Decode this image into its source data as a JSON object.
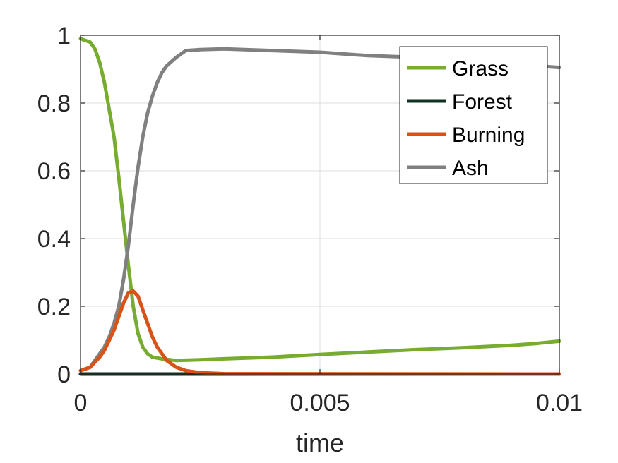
{
  "chart_data": {
    "type": "line",
    "title": "",
    "xlabel": "time",
    "ylabel": "",
    "xlim": [
      0,
      0.01
    ],
    "ylim": [
      0,
      1
    ],
    "xticks": [
      0,
      0.005,
      0.01
    ],
    "xtick_labels": [
      "0",
      "0.005",
      "0.01"
    ],
    "yticks": [
      0,
      0.2,
      0.4,
      0.6,
      0.8,
      1
    ],
    "ytick_labels": [
      "0",
      "0.2",
      "0.4",
      "0.6",
      "0.8",
      "1"
    ],
    "grid": true,
    "legend_position": "top-right",
    "series": [
      {
        "name": "Grass",
        "color": "#77ac30",
        "x": [
          0,
          0.0002,
          0.0003,
          0.0004,
          0.0005,
          0.0006,
          0.0007,
          0.0008,
          0.0009,
          0.001,
          0.0011,
          0.0012,
          0.0013,
          0.0014,
          0.0015,
          0.0017,
          0.002,
          0.0025,
          0.003,
          0.004,
          0.005,
          0.006,
          0.007,
          0.008,
          0.009,
          0.0095,
          0.01
        ],
        "y": [
          0.99,
          0.98,
          0.96,
          0.92,
          0.86,
          0.78,
          0.7,
          0.58,
          0.45,
          0.32,
          0.2,
          0.12,
          0.08,
          0.06,
          0.05,
          0.045,
          0.04,
          0.042,
          0.045,
          0.05,
          0.058,
          0.065,
          0.072,
          0.078,
          0.085,
          0.09,
          0.097
        ]
      },
      {
        "name": "Forest",
        "color": "#0e3322",
        "x": [
          0,
          0.01
        ],
        "y": [
          0,
          0
        ]
      },
      {
        "name": "Burning",
        "color": "#d95319",
        "x": [
          0,
          0.0002,
          0.0003,
          0.0004,
          0.0005,
          0.0006,
          0.0007,
          0.0008,
          0.0009,
          0.001,
          0.0011,
          0.0012,
          0.0013,
          0.0014,
          0.0015,
          0.0016,
          0.0017,
          0.0018,
          0.0019,
          0.002,
          0.0022,
          0.0025,
          0.003,
          0.01
        ],
        "y": [
          0.01,
          0.02,
          0.035,
          0.05,
          0.07,
          0.1,
          0.13,
          0.17,
          0.21,
          0.24,
          0.245,
          0.23,
          0.19,
          0.15,
          0.11,
          0.08,
          0.06,
          0.04,
          0.03,
          0.02,
          0.01,
          0.004,
          0.001,
          0
        ]
      },
      {
        "name": "Ash",
        "color": "#808080",
        "x": [
          0,
          0.0002,
          0.0003,
          0.0004,
          0.0005,
          0.0006,
          0.0007,
          0.0008,
          0.0009,
          0.001,
          0.0011,
          0.0012,
          0.0013,
          0.0014,
          0.0015,
          0.0016,
          0.0017,
          0.0018,
          0.002,
          0.0022,
          0.0025,
          0.003,
          0.004,
          0.005,
          0.006,
          0.007,
          0.008,
          0.009,
          0.01
        ],
        "y": [
          0.01,
          0.02,
          0.04,
          0.06,
          0.08,
          0.11,
          0.15,
          0.2,
          0.28,
          0.38,
          0.5,
          0.61,
          0.7,
          0.77,
          0.82,
          0.86,
          0.89,
          0.91,
          0.935,
          0.955,
          0.958,
          0.96,
          0.955,
          0.95,
          0.94,
          0.935,
          0.925,
          0.915,
          0.905
        ]
      }
    ]
  }
}
